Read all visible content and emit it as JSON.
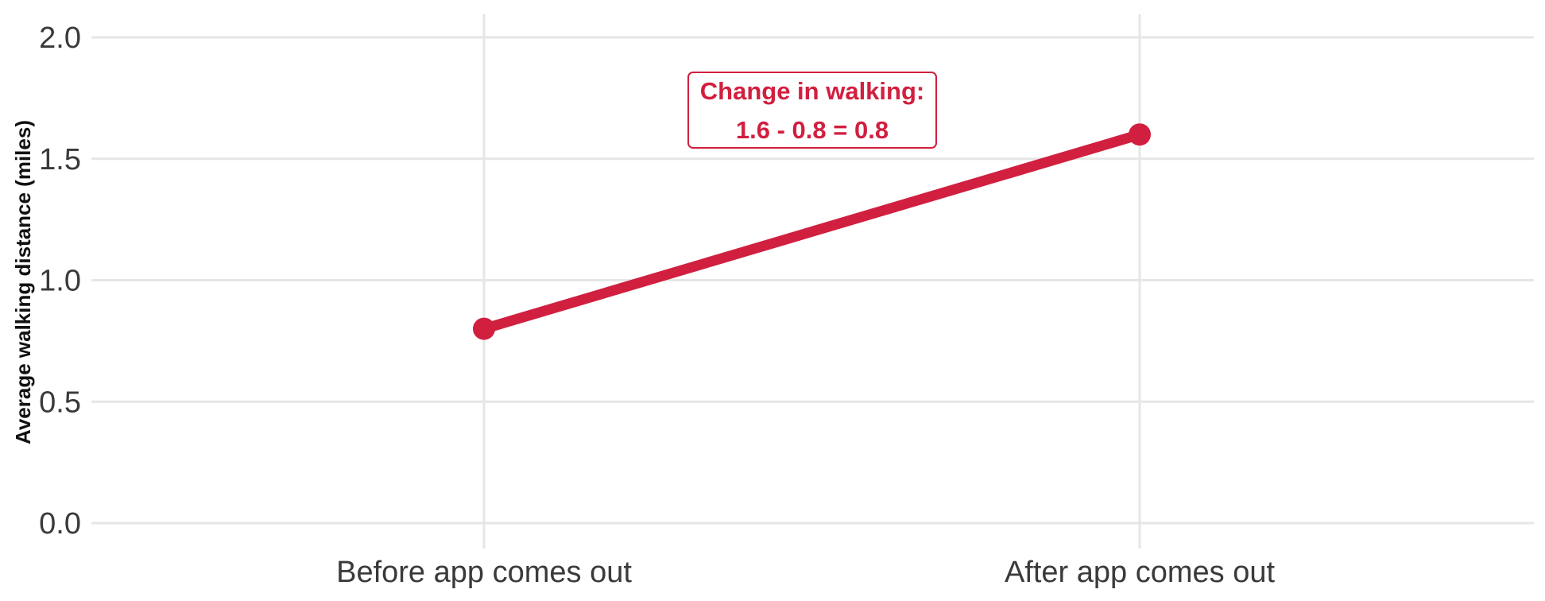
{
  "chart_data": {
    "type": "line",
    "categories": [
      "Before app comes out",
      "After app comes out"
    ],
    "series": [
      {
        "values": [
          0.8,
          1.6
        ]
      }
    ],
    "title": "",
    "xlabel": "",
    "ylabel": "Average walking distance (miles)",
    "ylim": [
      0,
      2
    ],
    "yticks": [
      "0.0",
      "0.5",
      "1.0",
      "1.5",
      "2.0"
    ],
    "grid": true,
    "legend": "none",
    "color": "#d11f3f",
    "annotation": {
      "lines": [
        "Change in walking:",
        "1.6 - 0.8 = 0.8"
      ]
    }
  }
}
